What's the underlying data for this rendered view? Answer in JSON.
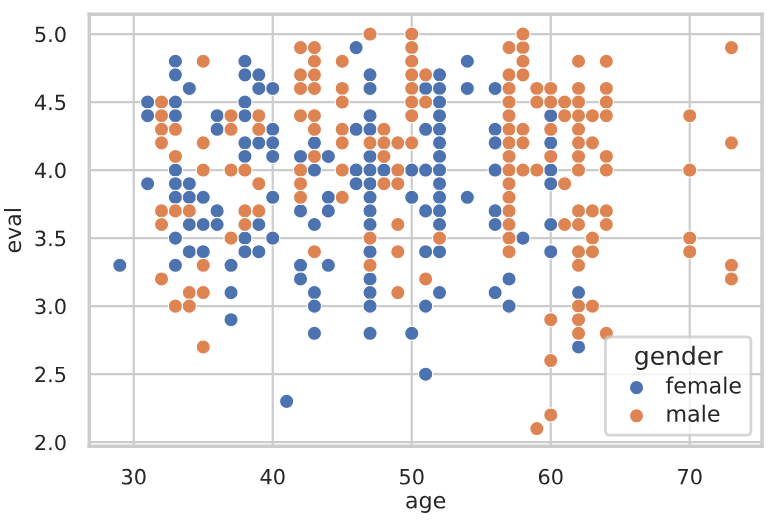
{
  "chart_data": {
    "type": "scatter",
    "xlabel": "age",
    "ylabel": "eval",
    "legend_title": "gender",
    "legend": "bottom right",
    "grid": true,
    "marker": "circle",
    "xlim": [
      26.8,
      75.2
    ],
    "xticks": [
      30,
      40,
      50,
      60,
      70
    ],
    "ylim": [
      1.97,
      5.145
    ],
    "yticks": [
      {
        "value": 2,
        "label": "2.0"
      },
      {
        "value": 2.5,
        "label": "2.5"
      },
      {
        "value": 3,
        "label": "3.0"
      },
      {
        "value": 3.5,
        "label": "3.5"
      },
      {
        "value": 4,
        "label": "4.0"
      },
      {
        "value": 4.5,
        "label": "4.5"
      },
      {
        "value": 5,
        "label": "5.0"
      }
    ],
    "series": [
      {
        "name": "female",
        "color": "#4c72b0",
        "x": [
          33,
          38,
          33,
          38,
          39,
          34,
          39,
          40,
          31,
          33,
          38,
          31,
          33,
          36,
          38,
          36,
          40,
          38,
          39,
          40,
          43,
          38,
          40,
          42,
          33,
          43,
          31,
          33,
          34,
          33,
          34,
          35,
          40,
          36,
          42,
          34,
          35,
          36,
          39,
          43,
          33,
          38,
          40,
          34,
          35,
          38,
          39,
          29,
          33,
          37,
          42,
          42,
          37,
          43,
          43,
          37,
          43,
          41,
          46,
          54,
          47,
          52,
          47,
          51,
          52,
          54,
          56,
          52,
          47,
          52,
          46,
          47,
          51,
          52,
          56,
          52,
          56,
          44,
          47,
          52,
          46,
          47,
          48,
          50,
          51,
          52,
          56,
          46,
          47,
          52,
          44,
          47,
          50,
          52,
          54,
          44,
          47,
          51,
          52,
          56,
          47,
          52,
          56,
          58,
          47,
          51,
          52,
          44,
          47,
          57,
          47,
          52,
          56,
          47,
          51,
          57,
          47,
          50,
          51,
          60,
          60,
          60,
          60,
          60,
          60,
          62,
          62
        ],
        "values": [
          4.8,
          4.8,
          4.7,
          4.7,
          4.7,
          4.6,
          4.6,
          4.6,
          4.5,
          4.5,
          4.5,
          4.4,
          4.4,
          4.4,
          4.4,
          4.3,
          4.3,
          4.2,
          4.2,
          4.2,
          4.2,
          4.1,
          4.1,
          4.1,
          4.0,
          4.0,
          3.9,
          3.9,
          3.9,
          3.8,
          3.8,
          3.8,
          3.8,
          3.7,
          3.7,
          3.6,
          3.6,
          3.6,
          3.6,
          3.6,
          3.5,
          3.5,
          3.5,
          3.4,
          3.4,
          3.4,
          3.4,
          3.3,
          3.3,
          3.3,
          3.3,
          3.2,
          3.1,
          3.1,
          3.0,
          2.9,
          2.8,
          2.3,
          4.9,
          4.8,
          4.7,
          4.7,
          4.6,
          4.6,
          4.6,
          4.6,
          4.6,
          4.5,
          4.4,
          4.4,
          4.3,
          4.3,
          4.3,
          4.3,
          4.3,
          4.2,
          4.2,
          4.1,
          4.1,
          4.1,
          4.0,
          4.0,
          4.0,
          4.0,
          4.0,
          4.0,
          4.0,
          3.9,
          3.9,
          3.9,
          3.8,
          3.8,
          3.8,
          3.8,
          3.8,
          3.7,
          3.7,
          3.7,
          3.7,
          3.7,
          3.6,
          3.6,
          3.6,
          3.5,
          3.4,
          3.4,
          3.4,
          3.3,
          3.2,
          3.2,
          3.1,
          3.1,
          3.1,
          3.0,
          3.0,
          3.0,
          2.8,
          2.8,
          2.5,
          4.4,
          4.2,
          4.0,
          3.9,
          3.6,
          3.4,
          3.1,
          2.7
        ]
      },
      {
        "name": "male",
        "color": "#dd8452",
        "x": [
          35,
          43,
          42,
          43,
          42,
          43,
          42,
          43,
          32,
          32,
          37,
          39,
          42,
          43,
          32,
          33,
          37,
          39,
          43,
          32,
          35,
          33,
          43,
          35,
          37,
          38,
          42,
          39,
          42,
          42,
          32,
          33,
          34,
          38,
          39,
          32,
          38,
          37,
          43,
          35,
          32,
          34,
          35,
          33,
          34,
          35,
          47,
          50,
          50,
          57,
          58,
          45,
          50,
          58,
          50,
          51,
          57,
          58,
          45,
          50,
          57,
          59,
          45,
          50,
          51,
          57,
          50,
          57,
          45,
          48,
          57,
          45,
          47,
          48,
          49,
          50,
          57,
          48,
          57,
          45,
          49,
          57,
          58,
          59,
          48,
          49,
          57,
          45,
          57,
          57,
          49,
          57,
          47,
          52,
          57,
          49,
          57,
          47,
          51,
          49,
          59,
          58,
          62,
          64,
          60,
          62,
          64,
          59,
          60,
          61,
          62,
          64,
          61,
          62,
          63,
          64,
          70,
          58,
          60,
          62,
          58,
          62,
          63,
          73,
          60,
          62,
          64,
          62,
          64,
          70,
          61,
          62,
          63,
          64,
          61,
          62,
          64,
          73,
          63,
          70,
          62,
          63,
          70,
          62,
          73,
          73,
          62,
          63,
          60,
          62,
          62,
          64,
          60,
          60
        ],
        "values": [
          4.8,
          4.8,
          4.9,
          4.9,
          4.7,
          4.7,
          4.6,
          4.6,
          4.5,
          4.4,
          4.4,
          4.4,
          4.4,
          4.4,
          4.3,
          4.3,
          4.3,
          4.3,
          4.3,
          4.2,
          4.2,
          4.1,
          4.1,
          4.0,
          4.0,
          4.0,
          4.0,
          3.9,
          3.9,
          3.8,
          3.7,
          3.7,
          3.7,
          3.7,
          3.7,
          3.6,
          3.6,
          3.5,
          3.4,
          3.3,
          3.2,
          3.1,
          3.1,
          3.0,
          3.0,
          2.7,
          5.0,
          5.0,
          4.9,
          4.9,
          4.9,
          4.8,
          4.8,
          4.8,
          4.7,
          4.7,
          4.7,
          4.7,
          4.6,
          4.6,
          4.6,
          4.6,
          4.5,
          4.5,
          4.5,
          4.5,
          4.4,
          4.4,
          4.3,
          4.3,
          4.3,
          4.2,
          4.2,
          4.2,
          4.2,
          4.2,
          4.2,
          4.1,
          4.1,
          4.0,
          4.0,
          4.0,
          4.0,
          4.0,
          3.9,
          3.9,
          3.9,
          3.8,
          3.8,
          3.7,
          3.6,
          3.6,
          3.5,
          3.5,
          3.5,
          3.4,
          3.4,
          3.3,
          3.2,
          3.1,
          2.1,
          5.0,
          4.8,
          4.8,
          4.6,
          4.6,
          4.6,
          4.5,
          4.5,
          4.5,
          4.5,
          4.5,
          4.4,
          4.4,
          4.4,
          4.4,
          4.4,
          4.3,
          4.3,
          4.3,
          4.2,
          4.2,
          4.2,
          4.2,
          4.1,
          4.1,
          4.1,
          4.0,
          4.0,
          4.0,
          3.9,
          3.7,
          3.7,
          3.7,
          3.6,
          3.6,
          3.6,
          4.9,
          3.5,
          3.5,
          3.4,
          3.4,
          3.4,
          3.3,
          3.3,
          3.2,
          3.0,
          3.0,
          2.9,
          2.9,
          2.8,
          2.8,
          2.6,
          2.2
        ]
      }
    ]
  }
}
